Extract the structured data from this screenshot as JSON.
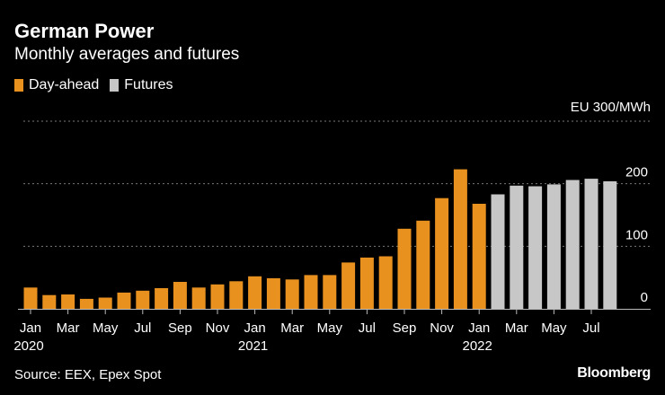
{
  "header": {
    "title": "German Power",
    "subtitle": "Monthly averages and futures"
  },
  "footer": {
    "source": "Source: EEX, Epex Spot",
    "brand": "Bloomberg"
  },
  "colors": {
    "day_ahead": "#e8911f",
    "futures": "#c7c7c7",
    "grid": "#777777"
  },
  "chart_data": {
    "type": "bar",
    "unit_label": "EU 300/MWh",
    "ylim": [
      0,
      300
    ],
    "yticks": [
      0,
      100,
      200
    ],
    "grid": true,
    "legend_placement": "top-left",
    "series": [
      {
        "name": "Day-ahead",
        "x": [
          "2020-01",
          "2020-02",
          "2020-03",
          "2020-04",
          "2020-05",
          "2020-06",
          "2020-07",
          "2020-08",
          "2020-09",
          "2020-10",
          "2020-11",
          "2020-12",
          "2021-01",
          "2021-02",
          "2021-03",
          "2021-04",
          "2021-05",
          "2021-06",
          "2021-07",
          "2021-08",
          "2021-09",
          "2021-10",
          "2021-11",
          "2021-12",
          "2022-01"
        ],
        "values": [
          34,
          22,
          23,
          16,
          18,
          26,
          29,
          33,
          43,
          34,
          39,
          44,
          52,
          49,
          47,
          54,
          54,
          74,
          82,
          84,
          128,
          141,
          177,
          223,
          168
        ]
      },
      {
        "name": "Futures",
        "x": [
          "2022-02",
          "2022-03",
          "2022-04",
          "2022-05",
          "2022-06",
          "2022-07",
          "2022-08"
        ],
        "values": [
          183,
          197,
          196,
          199,
          206,
          208,
          204
        ]
      }
    ],
    "x_tick_labels": [
      {
        "month": "2020-01",
        "label": "Jan",
        "year": "2020"
      },
      {
        "month": "2020-03",
        "label": "Mar"
      },
      {
        "month": "2020-05",
        "label": "May"
      },
      {
        "month": "2020-07",
        "label": "Jul"
      },
      {
        "month": "2020-09",
        "label": "Sep"
      },
      {
        "month": "2020-11",
        "label": "Nov"
      },
      {
        "month": "2021-01",
        "label": "Jan",
        "year": "2021"
      },
      {
        "month": "2021-03",
        "label": "Mar"
      },
      {
        "month": "2021-05",
        "label": "May"
      },
      {
        "month": "2021-07",
        "label": "Jul"
      },
      {
        "month": "2021-09",
        "label": "Sep"
      },
      {
        "month": "2021-11",
        "label": "Nov"
      },
      {
        "month": "2022-01",
        "label": "Jan",
        "year": "2022"
      },
      {
        "month": "2022-03",
        "label": "Mar"
      },
      {
        "month": "2022-05",
        "label": "May"
      },
      {
        "month": "2022-07",
        "label": "Jul"
      }
    ]
  }
}
